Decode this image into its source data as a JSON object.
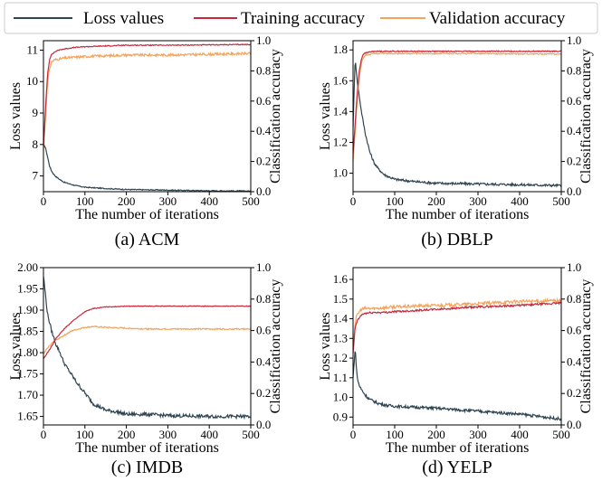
{
  "colors": {
    "loss": "#2f4553",
    "train": "#c8283c",
    "val": "#f3a35c",
    "axis": "#000000",
    "legend_border": "#cccccc"
  },
  "legend": {
    "loss_label": "Loss values",
    "train_label": "Training accuracy",
    "val_label": "Validation accuracy"
  },
  "chart_data": [
    {
      "type": "line",
      "caption": "(a) ACM",
      "xlabel": "The number of iterations",
      "ylabel_left": "Loss values",
      "ylabel_right": "Classification accuracy",
      "xlim": [
        0,
        500
      ],
      "xticks": [
        0,
        100,
        200,
        300,
        400,
        500
      ],
      "ylim_left": [
        6.5,
        11.3
      ],
      "yticks_left": [
        7,
        8,
        9,
        10,
        11
      ],
      "ylim_right": [
        0,
        1.0
      ],
      "yticks_right": [
        0.0,
        0.2,
        0.4,
        0.6,
        0.8,
        1.0
      ],
      "tick_decimals_left": 0,
      "series": [
        {
          "name": "Loss values",
          "axis": "left",
          "x": [
            0,
            5,
            10,
            15,
            20,
            25,
            30,
            40,
            50,
            75,
            100,
            150,
            200,
            300,
            400,
            500
          ],
          "y": [
            8.0,
            7.9,
            7.6,
            7.3,
            7.15,
            7.05,
            6.98,
            6.88,
            6.8,
            6.7,
            6.64,
            6.6,
            6.57,
            6.55,
            6.53,
            6.52
          ],
          "noise": 0.015
        },
        {
          "name": "Training accuracy",
          "axis": "right",
          "x": [
            0,
            5,
            10,
            15,
            20,
            25,
            30,
            40,
            50,
            75,
            100,
            150,
            200,
            300,
            400,
            500
          ],
          "y": [
            0.3,
            0.55,
            0.78,
            0.88,
            0.91,
            0.92,
            0.93,
            0.94,
            0.945,
            0.955,
            0.96,
            0.965,
            0.97,
            0.97,
            0.972,
            0.975
          ],
          "noise": 0.003
        },
        {
          "name": "Validation accuracy",
          "axis": "right",
          "x": [
            0,
            5,
            10,
            15,
            20,
            25,
            30,
            40,
            50,
            75,
            100,
            150,
            200,
            300,
            400,
            500
          ],
          "y": [
            0.28,
            0.5,
            0.72,
            0.82,
            0.86,
            0.87,
            0.875,
            0.88,
            0.885,
            0.89,
            0.895,
            0.9,
            0.905,
            0.905,
            0.91,
            0.915
          ],
          "noise": 0.008
        }
      ]
    },
    {
      "type": "line",
      "caption": "(b) DBLP",
      "xlabel": "The number of iterations",
      "ylabel_left": "Loss values",
      "ylabel_right": "Classification accuracy",
      "xlim": [
        0,
        500
      ],
      "xticks": [
        0,
        100,
        200,
        300,
        400,
        500
      ],
      "ylim_left": [
        0.88,
        1.86
      ],
      "yticks_left": [
        1.0,
        1.2,
        1.4,
        1.6,
        1.8
      ],
      "ylim_right": [
        0,
        1.0
      ],
      "yticks_right": [
        0.0,
        0.2,
        0.4,
        0.6,
        0.8,
        1.0
      ],
      "tick_decimals_left": 1,
      "series": [
        {
          "name": "Loss values",
          "axis": "left",
          "x": [
            0,
            5,
            10,
            15,
            20,
            30,
            40,
            50,
            60,
            75,
            100,
            150,
            200,
            300,
            400,
            500
          ],
          "y": [
            1.3,
            1.75,
            1.6,
            1.5,
            1.4,
            1.25,
            1.14,
            1.07,
            1.03,
            0.99,
            0.96,
            0.945,
            0.935,
            0.93,
            0.925,
            0.92
          ],
          "noise": 0.008
        },
        {
          "name": "Training accuracy",
          "axis": "right",
          "x": [
            0,
            5,
            10,
            15,
            20,
            25,
            30,
            40,
            50,
            75,
            100,
            200,
            300,
            400,
            500
          ],
          "y": [
            0.25,
            0.45,
            0.65,
            0.8,
            0.88,
            0.91,
            0.92,
            0.925,
            0.93,
            0.93,
            0.93,
            0.93,
            0.93,
            0.93,
            0.93
          ],
          "noise": 0.003
        },
        {
          "name": "Validation accuracy",
          "axis": "right",
          "x": [
            0,
            5,
            10,
            15,
            20,
            25,
            30,
            40,
            50,
            75,
            100,
            200,
            300,
            400,
            500
          ],
          "y": [
            0.2,
            0.4,
            0.6,
            0.76,
            0.85,
            0.89,
            0.905,
            0.91,
            0.915,
            0.915,
            0.915,
            0.915,
            0.915,
            0.912,
            0.912
          ],
          "noise": 0.004
        }
      ]
    },
    {
      "type": "line",
      "caption": "(c) IMDB",
      "xlabel": "The number of iterations",
      "ylabel_left": "Loss values",
      "ylabel_right": "Classification accuracy",
      "xlim": [
        0,
        500
      ],
      "xticks": [
        0,
        100,
        200,
        300,
        400,
        500
      ],
      "ylim_left": [
        1.63,
        2.0
      ],
      "yticks_left": [
        1.65,
        1.7,
        1.75,
        1.8,
        1.85,
        1.9,
        1.95,
        2.0
      ],
      "ylim_right": [
        0,
        1.0
      ],
      "yticks_right": [
        0.0,
        0.2,
        0.4,
        0.6,
        0.8,
        1.0
      ],
      "tick_decimals_left": 2,
      "series": [
        {
          "name": "Loss values",
          "axis": "left",
          "x": [
            0,
            10,
            20,
            30,
            40,
            50,
            60,
            70,
            80,
            100,
            120,
            150,
            180,
            200,
            250,
            300,
            400,
            500
          ],
          "y": [
            1.98,
            1.89,
            1.85,
            1.82,
            1.8,
            1.775,
            1.76,
            1.745,
            1.73,
            1.705,
            1.68,
            1.665,
            1.66,
            1.655,
            1.655,
            1.652,
            1.65,
            1.65
          ],
          "noise": 0.004
        },
        {
          "name": "Training accuracy",
          "axis": "right",
          "x": [
            0,
            10,
            20,
            30,
            50,
            70,
            100,
            120,
            150,
            200,
            300,
            400,
            500
          ],
          "y": [
            0.42,
            0.46,
            0.5,
            0.55,
            0.61,
            0.66,
            0.72,
            0.74,
            0.75,
            0.755,
            0.755,
            0.755,
            0.755
          ],
          "noise": 0.002
        },
        {
          "name": "Validation accuracy",
          "axis": "right",
          "x": [
            0,
            10,
            20,
            30,
            50,
            70,
            100,
            120,
            150,
            200,
            250,
            300,
            400,
            500
          ],
          "y": [
            0.45,
            0.49,
            0.52,
            0.54,
            0.57,
            0.6,
            0.62,
            0.625,
            0.62,
            0.615,
            0.61,
            0.61,
            0.61,
            0.61
          ],
          "noise": 0.004
        }
      ]
    },
    {
      "type": "line",
      "caption": "(d) YELP",
      "xlabel": "The number of iterations",
      "ylabel_left": "Loss values",
      "ylabel_right": "Classification accuracy",
      "xlim": [
        0,
        500
      ],
      "xticks": [
        0,
        100,
        200,
        300,
        400,
        500
      ],
      "ylim_left": [
        0.86,
        1.66
      ],
      "yticks_left": [
        0.9,
        1.0,
        1.1,
        1.2,
        1.3,
        1.4,
        1.5,
        1.6
      ],
      "ylim_right": [
        0,
        1.0
      ],
      "yticks_right": [
        0.0,
        0.2,
        0.4,
        0.6,
        0.8,
        1.0
      ],
      "tick_decimals_left": 1,
      "series": [
        {
          "name": "Loss values",
          "axis": "left",
          "x": [
            0,
            5,
            10,
            15,
            20,
            30,
            40,
            60,
            80,
            100,
            150,
            200,
            300,
            400,
            500
          ],
          "y": [
            1.1,
            1.25,
            1.1,
            1.06,
            1.04,
            1.01,
            0.99,
            0.97,
            0.96,
            0.955,
            0.95,
            0.945,
            0.93,
            0.915,
            0.89
          ],
          "noise": 0.007
        },
        {
          "name": "Training accuracy",
          "axis": "right",
          "x": [
            0,
            5,
            10,
            15,
            20,
            30,
            50,
            75,
            100,
            200,
            300,
            400,
            500
          ],
          "y": [
            0.45,
            0.62,
            0.66,
            0.68,
            0.7,
            0.71,
            0.715,
            0.715,
            0.72,
            0.735,
            0.75,
            0.76,
            0.775
          ],
          "noise": 0.006
        },
        {
          "name": "Validation accuracy",
          "axis": "right",
          "x": [
            0,
            5,
            10,
            15,
            20,
            30,
            50,
            75,
            100,
            200,
            300,
            400,
            500
          ],
          "y": [
            0.5,
            0.65,
            0.7,
            0.72,
            0.735,
            0.74,
            0.74,
            0.745,
            0.75,
            0.76,
            0.77,
            0.785,
            0.79
          ],
          "noise": 0.01
        }
      ]
    }
  ]
}
